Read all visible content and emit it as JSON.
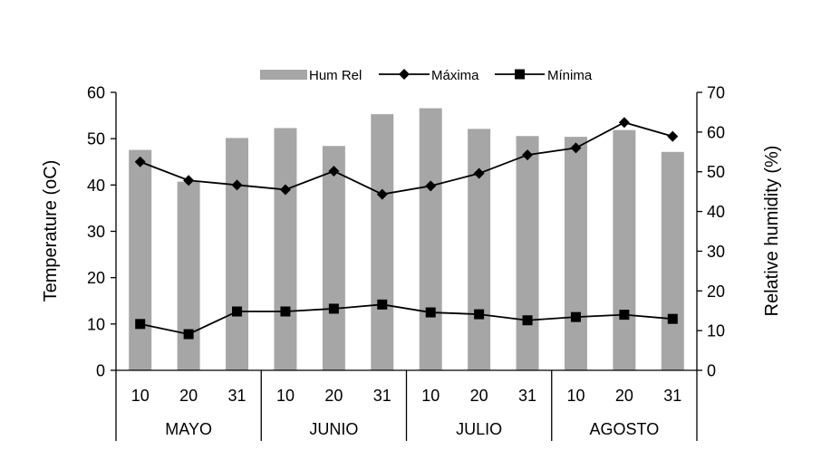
{
  "chart_data": {
    "type": "bar",
    "legend": {
      "position": "top",
      "entries": [
        {
          "label": "Hum Rel",
          "kind": "bar",
          "color": "#a6a6a6"
        },
        {
          "label": "Máxima",
          "kind": "line-diamond",
          "color": "#000000"
        },
        {
          "label": "Mínima",
          "kind": "line-square",
          "color": "#000000"
        }
      ]
    },
    "categories": [
      "10",
      "20",
      "31",
      "10",
      "20",
      "31",
      "10",
      "20",
      "31",
      "10",
      "20",
      "31"
    ],
    "groups": [
      {
        "label": "MAYO",
        "size": 3
      },
      {
        "label": "JUNIO",
        "size": 3
      },
      {
        "label": "JULIO",
        "size": 3
      },
      {
        "label": "AGOSTO",
        "size": 3
      }
    ],
    "ylabel_left": "Temperature (oC)",
    "ylabel_right": "Relative humidity (%)",
    "ylim_left": [
      0,
      60
    ],
    "yticks_left": [
      "0",
      "10",
      "20",
      "30",
      "40",
      "50",
      "60"
    ],
    "ylim_right": [
      0,
      70
    ],
    "yticks_right": [
      "0",
      "10",
      "20",
      "30",
      "40",
      "50",
      "60",
      "70"
    ],
    "grid": false,
    "series": [
      {
        "name": "Hum Rel",
        "type": "bar",
        "axis": "right",
        "color": "#a6a6a6",
        "values": [
          55.5,
          47.5,
          58.5,
          61.0,
          56.5,
          64.5,
          66.0,
          60.8,
          59.0,
          58.8,
          60.5,
          55.0
        ]
      },
      {
        "name": "Máxima",
        "type": "line",
        "marker": "diamond",
        "axis": "left",
        "color": "#000000",
        "values": [
          45.0,
          41.0,
          40.0,
          39.0,
          43.0,
          38.0,
          39.8,
          42.5,
          46.5,
          48.0,
          53.5,
          50.5
        ]
      },
      {
        "name": "Mínima",
        "type": "line",
        "marker": "square",
        "axis": "left",
        "color": "#000000",
        "values": [
          10.0,
          7.8,
          12.7,
          12.7,
          13.3,
          14.2,
          12.5,
          12.1,
          10.8,
          11.5,
          12.0,
          11.1
        ]
      }
    ]
  }
}
